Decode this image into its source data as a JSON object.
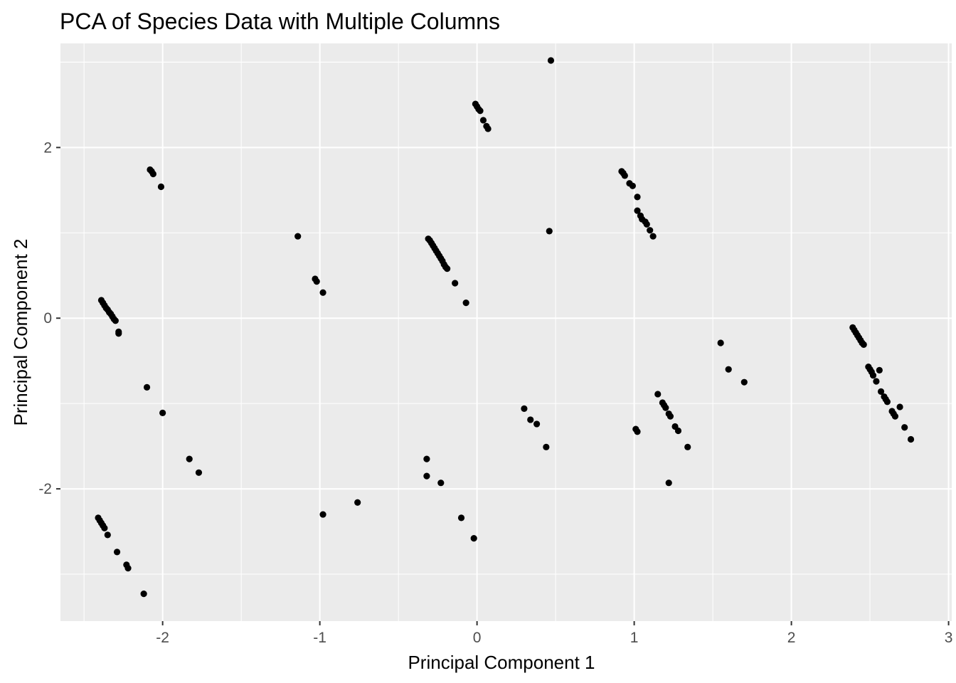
{
  "chart_data": {
    "type": "scatter",
    "title": "PCA of Species Data with Multiple Columns",
    "xlabel": "Principal Component 1",
    "ylabel": "Principal Component 2",
    "xlim": [
      -2.65,
      3.02
    ],
    "ylim": [
      -3.55,
      3.22
    ],
    "x_ticks": [
      -2,
      -1,
      0,
      1,
      2,
      3
    ],
    "x_tick_labels": [
      "-2",
      "-1",
      "0",
      "1",
      "2",
      "3"
    ],
    "y_ticks": [
      -2,
      0,
      2
    ],
    "y_tick_labels": [
      "-2",
      "0",
      "2"
    ],
    "grid": true,
    "legend": "none",
    "colors": {
      "panel": "#ebebeb",
      "grid": "#ffffff",
      "point": "#000000",
      "tick": "#4d4d4d"
    },
    "points": [
      {
        "x": 0.47,
        "y": 3.02
      },
      {
        "x": -0.01,
        "y": 2.51
      },
      {
        "x": 0.0,
        "y": 2.48
      },
      {
        "x": 0.01,
        "y": 2.45
      },
      {
        "x": 0.02,
        "y": 2.43
      },
      {
        "x": 0.04,
        "y": 2.32
      },
      {
        "x": 0.06,
        "y": 2.25
      },
      {
        "x": 0.07,
        "y": 2.22
      },
      {
        "x": -2.08,
        "y": 1.74
      },
      {
        "x": -2.07,
        "y": 1.72
      },
      {
        "x": -2.06,
        "y": 1.69
      },
      {
        "x": -2.01,
        "y": 1.54
      },
      {
        "x": 0.92,
        "y": 1.72
      },
      {
        "x": 0.93,
        "y": 1.7
      },
      {
        "x": 0.94,
        "y": 1.67
      },
      {
        "x": 0.97,
        "y": 1.58
      },
      {
        "x": 0.99,
        "y": 1.55
      },
      {
        "x": 1.02,
        "y": 1.42
      },
      {
        "x": 1.02,
        "y": 1.26
      },
      {
        "x": 1.04,
        "y": 1.2
      },
      {
        "x": 1.05,
        "y": 1.16
      },
      {
        "x": 1.07,
        "y": 1.13
      },
      {
        "x": 1.08,
        "y": 1.1
      },
      {
        "x": 1.1,
        "y": 1.03
      },
      {
        "x": 1.12,
        "y": 0.96
      },
      {
        "x": 0.46,
        "y": 1.02
      },
      {
        "x": -1.14,
        "y": 0.96
      },
      {
        "x": -1.03,
        "y": 0.46
      },
      {
        "x": -1.02,
        "y": 0.43
      },
      {
        "x": -0.98,
        "y": 0.3
      },
      {
        "x": -0.31,
        "y": 0.93
      },
      {
        "x": -0.3,
        "y": 0.91
      },
      {
        "x": -0.29,
        "y": 0.88
      },
      {
        "x": -0.28,
        "y": 0.85
      },
      {
        "x": -0.27,
        "y": 0.82
      },
      {
        "x": -0.26,
        "y": 0.79
      },
      {
        "x": -0.25,
        "y": 0.76
      },
      {
        "x": -0.24,
        "y": 0.73
      },
      {
        "x": -0.23,
        "y": 0.7
      },
      {
        "x": -0.22,
        "y": 0.67
      },
      {
        "x": -0.21,
        "y": 0.63
      },
      {
        "x": -0.2,
        "y": 0.6
      },
      {
        "x": -0.19,
        "y": 0.58
      },
      {
        "x": -0.14,
        "y": 0.41
      },
      {
        "x": -0.07,
        "y": 0.18
      },
      {
        "x": -2.39,
        "y": 0.21
      },
      {
        "x": -2.38,
        "y": 0.18
      },
      {
        "x": -2.37,
        "y": 0.15
      },
      {
        "x": -2.36,
        "y": 0.12
      },
      {
        "x": -2.35,
        "y": 0.1
      },
      {
        "x": -2.34,
        "y": 0.07
      },
      {
        "x": -2.33,
        "y": 0.05
      },
      {
        "x": -2.32,
        "y": 0.02
      },
      {
        "x": -2.31,
        "y": -0.01
      },
      {
        "x": -2.3,
        "y": -0.03
      },
      {
        "x": -2.28,
        "y": -0.16
      },
      {
        "x": -2.28,
        "y": -0.18
      },
      {
        "x": -2.1,
        "y": -0.81
      },
      {
        "x": -2.0,
        "y": -1.11
      },
      {
        "x": -1.83,
        "y": -1.65
      },
      {
        "x": -1.77,
        "y": -1.81
      },
      {
        "x": 1.55,
        "y": -0.29
      },
      {
        "x": 1.6,
        "y": -0.6
      },
      {
        "x": 1.7,
        "y": -0.75
      },
      {
        "x": 2.39,
        "y": -0.11
      },
      {
        "x": 2.4,
        "y": -0.14
      },
      {
        "x": 2.41,
        "y": -0.17
      },
      {
        "x": 2.42,
        "y": -0.2
      },
      {
        "x": 2.43,
        "y": -0.23
      },
      {
        "x": 2.44,
        "y": -0.26
      },
      {
        "x": 2.45,
        "y": -0.29
      },
      {
        "x": 2.46,
        "y": -0.31
      },
      {
        "x": 2.49,
        "y": -0.57
      },
      {
        "x": 2.5,
        "y": -0.6
      },
      {
        "x": 2.51,
        "y": -0.63
      },
      {
        "x": 2.52,
        "y": -0.67
      },
      {
        "x": 2.54,
        "y": -0.74
      },
      {
        "x": 2.56,
        "y": -0.61
      },
      {
        "x": 2.57,
        "y": -0.86
      },
      {
        "x": 2.59,
        "y": -0.92
      },
      {
        "x": 2.6,
        "y": -0.95
      },
      {
        "x": 2.61,
        "y": -0.98
      },
      {
        "x": 2.64,
        "y": -1.09
      },
      {
        "x": 2.65,
        "y": -1.12
      },
      {
        "x": 2.66,
        "y": -1.15
      },
      {
        "x": 2.69,
        "y": -1.04
      },
      {
        "x": 2.72,
        "y": -1.28
      },
      {
        "x": 2.76,
        "y": -1.42
      },
      {
        "x": 1.15,
        "y": -0.89
      },
      {
        "x": 1.18,
        "y": -0.99
      },
      {
        "x": 1.19,
        "y": -1.02
      },
      {
        "x": 1.2,
        "y": -1.05
      },
      {
        "x": 1.22,
        "y": -1.12
      },
      {
        "x": 1.23,
        "y": -1.15
      },
      {
        "x": 1.26,
        "y": -1.27
      },
      {
        "x": 1.28,
        "y": -1.32
      },
      {
        "x": 1.34,
        "y": -1.51
      },
      {
        "x": 1.22,
        "y": -1.93
      },
      {
        "x": 1.01,
        "y": -1.3
      },
      {
        "x": 1.02,
        "y": -1.33
      },
      {
        "x": 0.3,
        "y": -1.06
      },
      {
        "x": 0.34,
        "y": -1.19
      },
      {
        "x": 0.38,
        "y": -1.24
      },
      {
        "x": 0.44,
        "y": -1.51
      },
      {
        "x": -0.32,
        "y": -1.65
      },
      {
        "x": -0.32,
        "y": -1.85
      },
      {
        "x": -0.23,
        "y": -1.93
      },
      {
        "x": -0.1,
        "y": -2.34
      },
      {
        "x": -0.02,
        "y": -2.58
      },
      {
        "x": -0.98,
        "y": -2.3
      },
      {
        "x": -0.76,
        "y": -2.16
      },
      {
        "x": -2.41,
        "y": -2.34
      },
      {
        "x": -2.4,
        "y": -2.37
      },
      {
        "x": -2.39,
        "y": -2.4
      },
      {
        "x": -2.38,
        "y": -2.43
      },
      {
        "x": -2.37,
        "y": -2.46
      },
      {
        "x": -2.35,
        "y": -2.54
      },
      {
        "x": -2.29,
        "y": -2.74
      },
      {
        "x": -2.23,
        "y": -2.89
      },
      {
        "x": -2.22,
        "y": -2.93
      },
      {
        "x": -2.12,
        "y": -3.23
      }
    ]
  }
}
